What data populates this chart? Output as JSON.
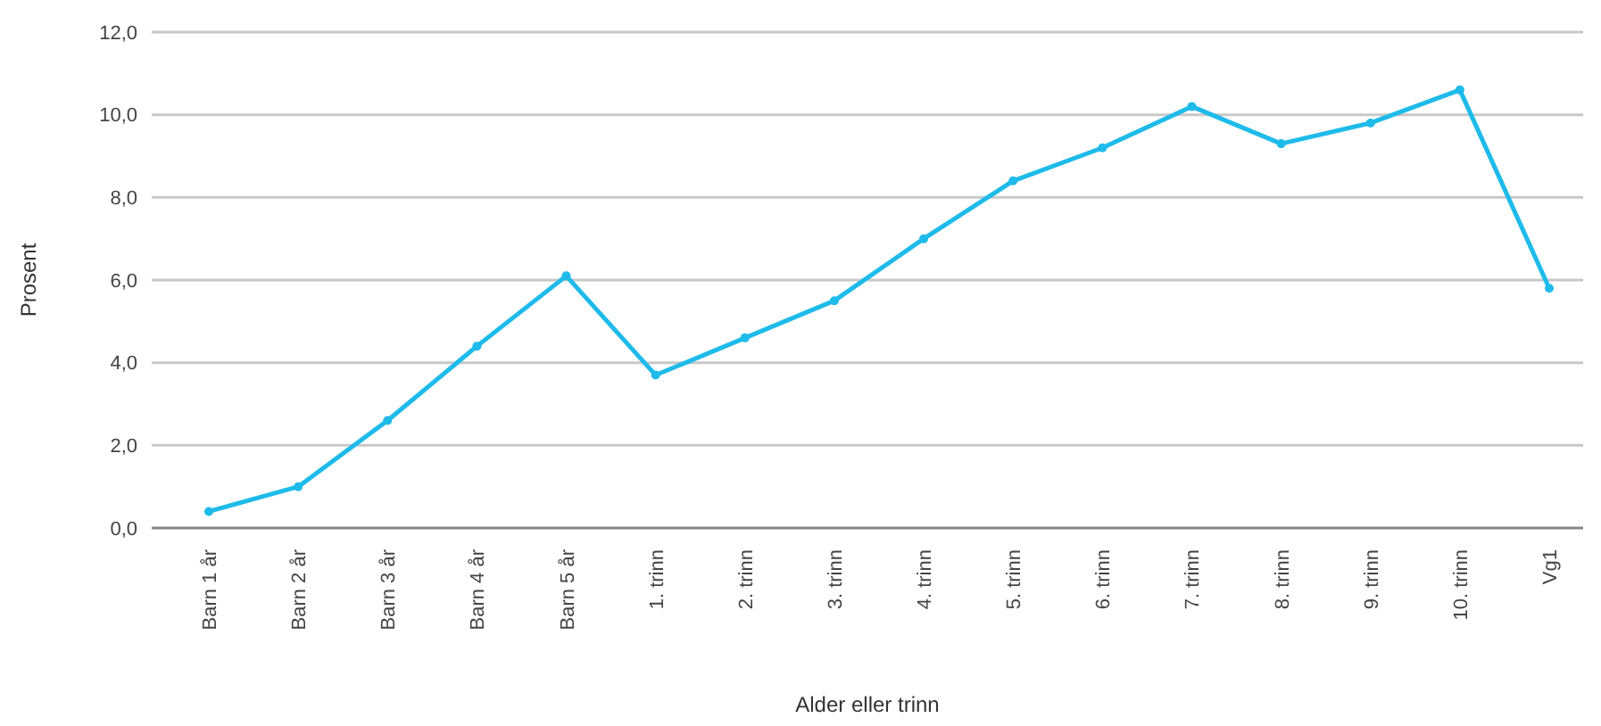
{
  "chart_data": {
    "type": "line",
    "xlabel": "Alder eller trinn",
    "ylabel": "Prosent",
    "categories": [
      "Barn 1 år",
      "Barn 2 år",
      "Barn 3 år",
      "Barn 4 år",
      "Barn 5 år",
      "1. trinn",
      "2. trinn",
      "3. trinn",
      "4. trinn",
      "5. trinn",
      "6. trinn",
      "7. trinn",
      "8. trinn",
      "9. trinn",
      "10. trinn",
      "Vg1"
    ],
    "series": [
      {
        "color": "#1ebbea",
        "values": [
          0.4,
          1.0,
          2.6,
          4.4,
          6.1,
          3.7,
          4.6,
          5.5,
          7.0,
          8.4,
          9.2,
          10.2,
          9.3,
          9.8,
          10.6,
          5.8
        ]
      }
    ],
    "ylim": [
      0,
      12
    ],
    "yticks": [
      {
        "value": 0,
        "label": "0,0"
      },
      {
        "value": 2,
        "label": "2,0"
      },
      {
        "value": 4,
        "label": "4,0"
      },
      {
        "value": 6,
        "label": "6,0"
      },
      {
        "value": 8,
        "label": "8,0"
      },
      {
        "value": 10,
        "label": "10,0"
      },
      {
        "value": 12,
        "label": "12,0"
      }
    ],
    "grid": "y",
    "marker": "circle",
    "line_style": "solid"
  }
}
